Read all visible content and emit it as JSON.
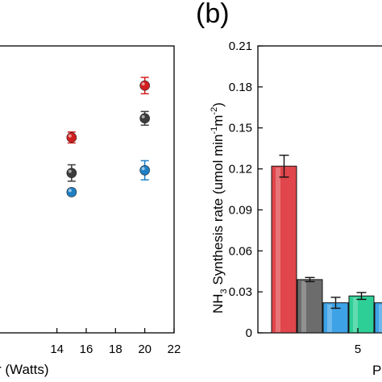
{
  "chart_data": [
    {
      "panel": "a",
      "type": "scatter",
      "xlabel": "r (Watts)",
      "ylabel": "",
      "x_ticks": [
        "14",
        "16",
        "18",
        "20",
        "22"
      ],
      "xlim": [
        10,
        22
      ],
      "ylim": [
        0,
        0.21
      ],
      "grid": false,
      "series": [
        {
          "color": "#d11f1f",
          "points": [
            {
              "x": 15,
              "y": 0.143,
              "err": 0.004
            },
            {
              "x": 20,
              "y": 0.181,
              "err": 0.006
            }
          ]
        },
        {
          "color": "#3c3c3c",
          "points": [
            {
              "x": 15,
              "y": 0.117,
              "err": 0.006
            },
            {
              "x": 20,
              "y": 0.157,
              "err": 0.005
            }
          ]
        },
        {
          "color": "#1f7fc4",
          "points": [
            {
              "x": 15,
              "y": 0.103,
              "err": 0.002
            },
            {
              "x": 20,
              "y": 0.119,
              "err": 0.007
            }
          ]
        }
      ]
    },
    {
      "panel": "b",
      "panel_label": "(b)",
      "type": "bar",
      "ylabel_main": "NH",
      "ylabel_sub": "3",
      "ylabel_rest": " Synthesis rate (umol min",
      "ylabel_sup1": "-1",
      "ylabel_mid": "m",
      "ylabel_sup2": "-2",
      "ylabel_end": ")",
      "xlabel": "P",
      "x_ticks": [
        "5"
      ],
      "y_ticks": [
        "0",
        "0.03",
        "0.06",
        "0.09",
        "0.12",
        "0.15",
        "0.18",
        "0.21"
      ],
      "ylim": [
        0,
        0.21
      ],
      "grid": false,
      "bars": [
        {
          "value": 0.122,
          "err": 0.008,
          "color": "#e0464b"
        },
        {
          "value": 0.039,
          "err": 0.0015,
          "color": "#6c6c6c"
        },
        {
          "value": 0.022,
          "err": 0.004,
          "color": "#3ea2e6"
        },
        {
          "value": 0.027,
          "err": 0.0025,
          "color": "#2ecf97"
        },
        {
          "value": 0.022,
          "err": 0.0015,
          "color": "#3ea2e6"
        }
      ]
    }
  ]
}
